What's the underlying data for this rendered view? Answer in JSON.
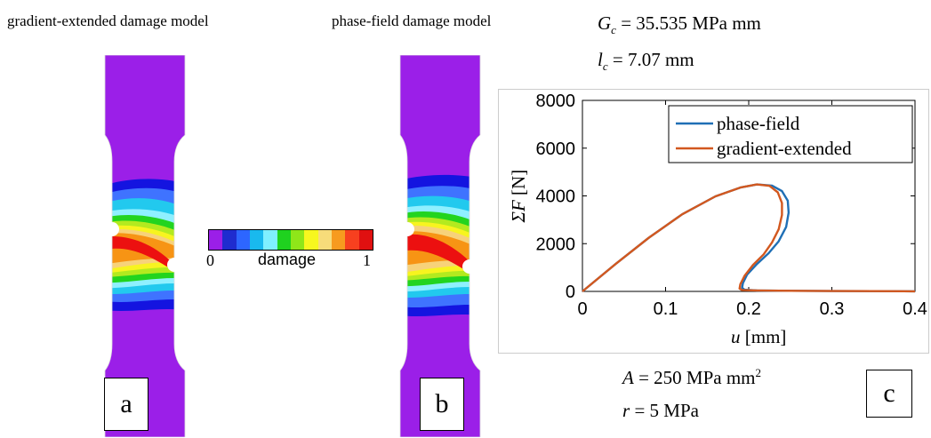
{
  "titles": {
    "left": "gradient-extended damage model",
    "middle": "phase-field damage model"
  },
  "params_top": {
    "gc_symbol": "G",
    "gc_sub": "c",
    "gc_value": "= 35.535 MPa mm",
    "lc_symbol": "l",
    "lc_sub": "c",
    "lc_value": "= 7.07 mm"
  },
  "params_bottom": {
    "a_symbol": "A",
    "a_value": "= 250 MPa mm",
    "a_exp": "2",
    "r_symbol": "r",
    "r_value": "= 5 MPa"
  },
  "panels": {
    "a": "a",
    "b": "b",
    "c": "c"
  },
  "colorbar": {
    "min_label": "0",
    "max_label": "1",
    "title": "damage",
    "colors": [
      "#9b1fe8",
      "#1f2ccf",
      "#2d66ff",
      "#19b9ee",
      "#7ff0ff",
      "#1fd21f",
      "#8fe619",
      "#f7f71f",
      "#f7dc7a",
      "#f79b1f",
      "#f7401f",
      "#e01010"
    ]
  },
  "specimen_colors": {
    "background": "#9b1fe8",
    "blue": "#1414e0",
    "light_blue": "#3f73ff",
    "cyan": "#22c9ee",
    "pale_cyan": "#8ff0ff",
    "green": "#22d41f",
    "yellow_green": "#b3ea1f",
    "yellow": "#f7f41f",
    "light_orange": "#f7d27a",
    "orange": "#f79414",
    "red": "#ec1010"
  },
  "chart_data": {
    "type": "line",
    "xlabel_symbol": "u",
    "xlabel_unit": "[mm]",
    "ylabel_symbol": "ΣF",
    "ylabel_unit": "[N]",
    "xlim": [
      0,
      0.4
    ],
    "ylim": [
      0,
      8000
    ],
    "xticks": [
      0,
      0.1,
      0.2,
      0.3,
      0.4
    ],
    "xtick_labels": [
      "0",
      "0.1",
      "0.2",
      "0.3",
      "0.4"
    ],
    "yticks": [
      0,
      2000,
      4000,
      6000,
      8000
    ],
    "ytick_labels": [
      "0",
      "2000",
      "4000",
      "6000",
      "8000"
    ],
    "legend_position": "top-right",
    "series": [
      {
        "name": "phase-field",
        "color": "#1f6fb5",
        "x": [
          0,
          0.04,
          0.08,
          0.12,
          0.16,
          0.19,
          0.21,
          0.228,
          0.24,
          0.247,
          0.248,
          0.245,
          0.236,
          0.224,
          0.21,
          0.198,
          0.193,
          0.192,
          0.195,
          0.21,
          0.25,
          0.3,
          0.35,
          0.4
        ],
        "values": [
          0,
          1150,
          2250,
          3230,
          3980,
          4350,
          4480,
          4430,
          4200,
          3800,
          3300,
          2700,
          2100,
          1600,
          1150,
          700,
          350,
          150,
          70,
          40,
          25,
          15,
          10,
          5
        ]
      },
      {
        "name": "gradient-extended",
        "color": "#d2581f",
        "x": [
          0,
          0.04,
          0.08,
          0.12,
          0.16,
          0.19,
          0.21,
          0.225,
          0.235,
          0.24,
          0.24,
          0.236,
          0.228,
          0.218,
          0.205,
          0.195,
          0.19,
          0.189,
          0.192,
          0.21,
          0.25,
          0.3,
          0.35,
          0.4
        ],
        "values": [
          0,
          1150,
          2250,
          3230,
          3980,
          4350,
          4480,
          4420,
          4150,
          3700,
          3200,
          2600,
          2050,
          1550,
          1100,
          650,
          300,
          120,
          60,
          40,
          25,
          15,
          10,
          5
        ]
      }
    ]
  }
}
